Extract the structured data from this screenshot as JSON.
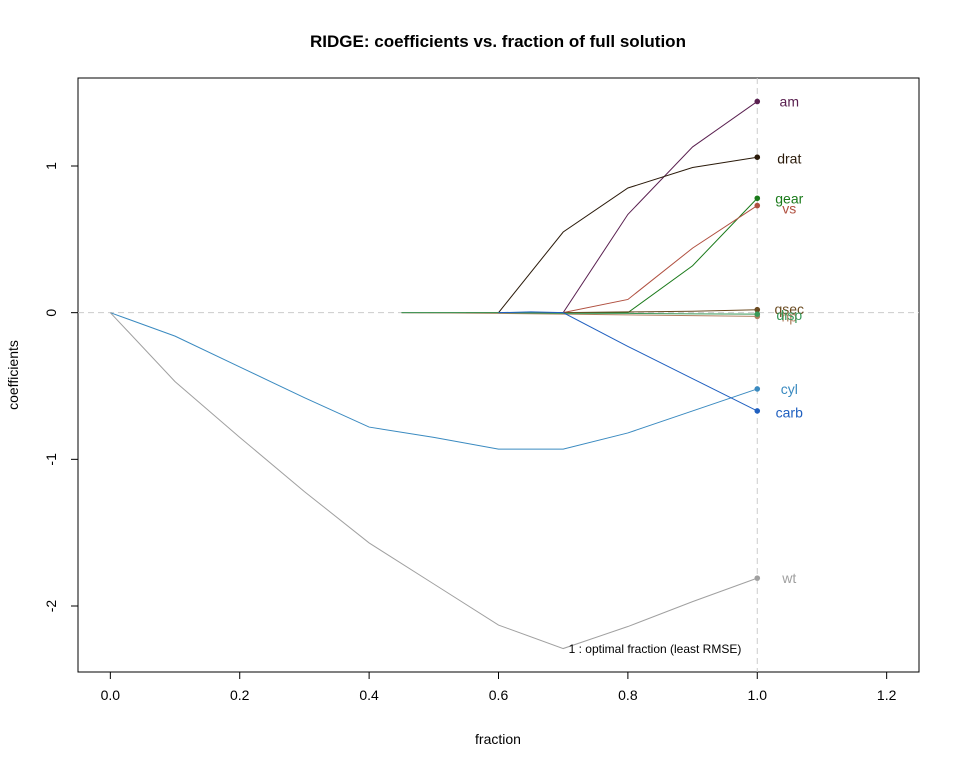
{
  "chart_data": {
    "type": "line",
    "title": "RIDGE: coefficients vs. fraction of full solution",
    "xlabel": "fraction",
    "ylabel": "coefficients",
    "xlim": [
      -0.05,
      1.25
    ],
    "ylim": [
      -2.45,
      1.6
    ],
    "xticks": [
      "0.0",
      "0.2",
      "0.4",
      "0.6",
      "0.8",
      "1.0",
      "1.2"
    ],
    "yticks": [
      "-2",
      "-1",
      "0",
      "1"
    ],
    "grid": false,
    "optimal_fraction": 1.0,
    "annotation": "1 : optimal fraction (least RMSE)",
    "series": [
      {
        "name": "am",
        "color": "#5a2050",
        "x": [
          0.6,
          0.65,
          0.7,
          0.8,
          0.9,
          1.0
        ],
        "y": [
          0,
          0,
          0,
          0.67,
          1.13,
          1.44
        ]
      },
      {
        "name": "drat",
        "color": "#2a1a0a",
        "x": [
          0.6,
          0.7,
          0.8,
          0.9,
          1.0
        ],
        "y": [
          0,
          0.55,
          0.85,
          0.99,
          1.06
        ]
      },
      {
        "name": "gear",
        "color": "#1a7a1a",
        "x": [
          0.55,
          0.7,
          0.8,
          0.9,
          1.0
        ],
        "y": [
          0,
          0,
          0,
          0.32,
          0.78
        ]
      },
      {
        "name": "vs",
        "color": "#b05040",
        "x": [
          0.55,
          0.7,
          0.8,
          0.9,
          1.0
        ],
        "y": [
          0,
          0,
          0.09,
          0.44,
          0.73
        ]
      },
      {
        "name": "qsec",
        "color": "#6a4a20",
        "x": [
          0.45,
          0.6,
          0.7,
          0.8,
          0.9,
          1.0
        ],
        "y": [
          0,
          0,
          0,
          0.005,
          0.01,
          0.02
        ]
      },
      {
        "name": "hp",
        "color": "#b08060",
        "x": [
          0.45,
          0.6,
          0.7,
          0.8,
          0.9,
          1.0
        ],
        "y": [
          0,
          -0.005,
          -0.01,
          -0.015,
          -0.02,
          -0.025
        ]
      },
      {
        "name": "disp",
        "color": "#3a9a5a",
        "x": [
          0.45,
          0.6,
          0.7,
          0.8,
          0.9,
          1.0
        ],
        "y": [
          0,
          0,
          -0.005,
          -0.005,
          -0.008,
          -0.01
        ]
      },
      {
        "name": "cyl",
        "color": "#3a8ac0",
        "x": [
          0.0,
          0.1,
          0.2,
          0.3,
          0.4,
          0.5,
          0.6,
          0.7,
          0.8,
          0.9,
          1.0
        ],
        "y": [
          0,
          -0.16,
          -0.37,
          -0.58,
          -0.78,
          -0.85,
          -0.93,
          -0.93,
          -0.82,
          -0.67,
          -0.52
        ]
      },
      {
        "name": "carb",
        "color": "#2060c0",
        "x": [
          0.6,
          0.65,
          0.7,
          0.8,
          0.9,
          1.0
        ],
        "y": [
          0,
          0.005,
          0,
          -0.23,
          -0.45,
          -0.67
        ]
      },
      {
        "name": "wt",
        "color": "#a0a0a0",
        "x": [
          0.0,
          0.1,
          0.2,
          0.3,
          0.4,
          0.5,
          0.6,
          0.7,
          0.8,
          0.9,
          1.0
        ],
        "y": [
          0,
          -0.47,
          -0.85,
          -1.22,
          -1.57,
          -1.85,
          -2.13,
          -2.29,
          -2.14,
          -1.97,
          -1.81
        ]
      }
    ],
    "labels": [
      {
        "name": "am",
        "text": "am",
        "color": "#5a2050",
        "y": 1.44
      },
      {
        "name": "drat",
        "text": "drat",
        "color": "#2a1a0a",
        "y": 1.05
      },
      {
        "name": "gear",
        "text": "gear",
        "color": "#1a7a1a",
        "y": 0.78
      },
      {
        "name": "vs",
        "text": "vs",
        "color": "#b05040",
        "y": 0.71
      },
      {
        "name": "qsec",
        "text": "qsec",
        "color": "#6a4a20",
        "y": 0.025
      },
      {
        "name": "hp",
        "text": "hp",
        "color": "#b08060",
        "y": -0.025
      },
      {
        "name": "disp",
        "text": "disp",
        "color": "#3a9a5a",
        "y": -0.015
      },
      {
        "name": "cyl",
        "text": "cyl",
        "color": "#3a8ac0",
        "y": -0.52
      },
      {
        "name": "carb",
        "text": "carb",
        "color": "#2060c0",
        "y": -0.68
      },
      {
        "name": "wt",
        "text": "wt",
        "color": "#a0a0a0",
        "y": -1.81
      }
    ]
  }
}
